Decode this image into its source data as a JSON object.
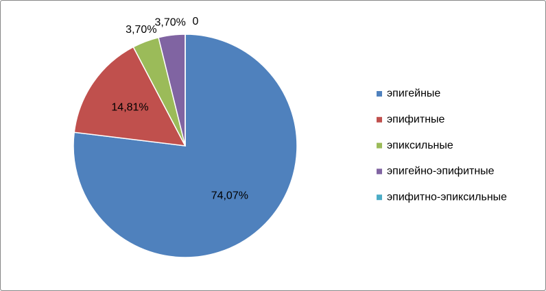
{
  "chart_data": {
    "type": "pie",
    "categories": [
      "эпигейные",
      "эпифитные",
      "эпиксильные",
      "эпигейно-эпифитные",
      "эпифитно-эпиксильные"
    ],
    "values": [
      74.07,
      14.81,
      3.7,
      3.7,
      0
    ],
    "value_labels": [
      "74,07%",
      "14,81%",
      "3,70%",
      "3,70%",
      "0"
    ],
    "colors": [
      "#4f81bd",
      "#c0504d",
      "#9bbb59",
      "#8064a2",
      "#4bacc6"
    ],
    "legend": "right"
  }
}
